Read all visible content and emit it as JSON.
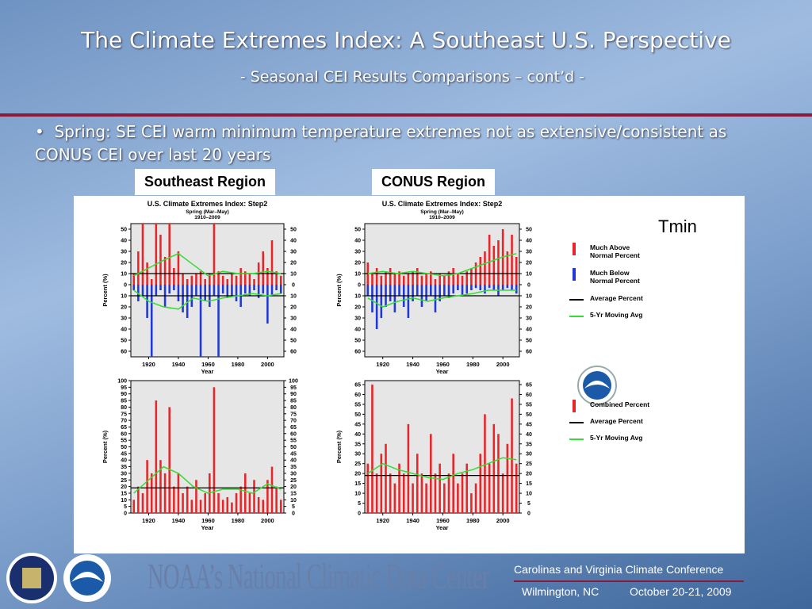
{
  "header": {
    "title": "The Climate Extremes Index:  A Southeast U.S. Perspective",
    "subtitle": "- Seasonal CEI Results Comparisons – cont’d -"
  },
  "bullet": "Spring:  SE CEI warm minimum temperature extremes not as extensive/consistent as CONUS CEI over last 20 years",
  "labels": {
    "southeast": "Southeast Region",
    "conus": "CONUS Region",
    "tmin": "Tmin"
  },
  "footer": {
    "center": "NOAA’s National Climatic Data Center",
    "conference": "Carolinas and Virginia Climate Conference",
    "place": "Wilmington, NC",
    "date": "October 20-21, 2009"
  },
  "chart_data": [
    {
      "type": "bar",
      "title": "U.S. Climate Extremes Index: Step2",
      "subtitle": "Spring (Mar–May)",
      "period": "1910–2009",
      "xlabel": "Year",
      "ylabel": "Percent (%)",
      "x": [
        1910,
        1913,
        1916,
        1919,
        1922,
        1925,
        1928,
        1931,
        1934,
        1937,
        1940,
        1943,
        1946,
        1949,
        1952,
        1955,
        1958,
        1961,
        1964,
        1967,
        1970,
        1973,
        1976,
        1979,
        1982,
        1985,
        1988,
        1991,
        1994,
        1997,
        2000,
        2003,
        2006,
        2009
      ],
      "xlim": [
        1908,
        2011
      ],
      "xticks": [
        1920,
        1940,
        1960,
        1980,
        2000
      ],
      "ylim": [
        -65,
        55
      ],
      "yticks": [
        {
          "value": -60,
          "label": "60"
        },
        {
          "value": -50,
          "label": "50"
        },
        {
          "value": -40,
          "label": "40"
        },
        {
          "value": -30,
          "label": "30"
        },
        {
          "value": -20,
          "label": "20"
        },
        {
          "value": -10,
          "label": "10"
        },
        0,
        10,
        20,
        30,
        40,
        50
      ],
      "series": [
        {
          "name": "Much Above Normal Percent",
          "color": "#e8262a",
          "values": [
            10,
            30,
            55,
            20,
            5,
            55,
            45,
            25,
            55,
            15,
            30,
            10,
            5,
            8,
            10,
            12,
            5,
            10,
            55,
            12,
            8,
            5,
            10,
            8,
            15,
            12,
            10,
            5,
            20,
            30,
            15,
            40,
            12,
            8
          ]
        },
        {
          "name": "Much Below Normal Percent",
          "color": "#2038d8",
          "values": [
            -5,
            -15,
            -10,
            -30,
            -65,
            -10,
            -5,
            -20,
            -8,
            -5,
            -15,
            -25,
            -30,
            -20,
            -10,
            -65,
            -15,
            -20,
            -10,
            -65,
            -8,
            -12,
            -10,
            -15,
            -20,
            -8,
            -10,
            -5,
            -12,
            -8,
            -35,
            -10,
            -5,
            -8
          ]
        },
        {
          "name": "5-Yr Moving Avg",
          "type": "line",
          "color": "#33dd33",
          "x": [
            1910,
            1920,
            1930,
            1940,
            1950,
            1960,
            1970,
            1980,
            1990,
            2000,
            2009
          ],
          "values": [
            8,
            15,
            22,
            28,
            18,
            8,
            12,
            10,
            10,
            12,
            10
          ],
          "below_values": [
            -5,
            -15,
            -20,
            -22,
            -12,
            -15,
            -12,
            -10,
            -8,
            -10,
            -8
          ]
        }
      ],
      "reference_lines": [
        {
          "name": "Average Percent",
          "color": "#000000",
          "values": [
            10,
            -10
          ]
        }
      ]
    },
    {
      "type": "bar",
      "title": "U.S. Climate Extremes Index: Step2",
      "subtitle": "Spring (Mar–May)",
      "period": "1910–2009",
      "xlabel": "Year",
      "ylabel": "Percent (%)",
      "legend": true,
      "x": [
        1910,
        1913,
        1916,
        1919,
        1922,
        1925,
        1928,
        1931,
        1934,
        1937,
        1940,
        1943,
        1946,
        1949,
        1952,
        1955,
        1958,
        1961,
        1964,
        1967,
        1970,
        1973,
        1976,
        1979,
        1982,
        1985,
        1988,
        1991,
        1994,
        1997,
        2000,
        2003,
        2006,
        2009
      ],
      "xlim": [
        1908,
        2011
      ],
      "xticks": [
        1920,
        1940,
        1960,
        1980,
        2000
      ],
      "ylim": [
        -65,
        55
      ],
      "yticks": [
        {
          "value": -60,
          "label": "60"
        },
        {
          "value": -50,
          "label": "50"
        },
        {
          "value": -40,
          "label": "40"
        },
        {
          "value": -30,
          "label": "30"
        },
        {
          "value": -20,
          "label": "20"
        },
        {
          "value": -10,
          "label": "10"
        },
        0,
        10,
        20,
        30,
        40,
        50
      ],
      "series": [
        {
          "name": "Much Above Normal Percent",
          "color": "#e8262a",
          "values": [
            20,
            10,
            15,
            8,
            12,
            15,
            10,
            12,
            8,
            10,
            12,
            15,
            8,
            10,
            12,
            5,
            10,
            8,
            12,
            15,
            10,
            8,
            12,
            15,
            20,
            25,
            30,
            45,
            35,
            40,
            50,
            30,
            45,
            25
          ]
        },
        {
          "name": "Much Below Normal Percent",
          "color": "#2038d8",
          "values": [
            -10,
            -25,
            -40,
            -30,
            -20,
            -15,
            -25,
            -10,
            -20,
            -30,
            -15,
            -10,
            -20,
            -15,
            -10,
            -25,
            -15,
            -10,
            -12,
            -8,
            -5,
            -10,
            -8,
            -5,
            -3,
            -5,
            -8,
            -3,
            -5,
            -10,
            -5,
            -3,
            -5,
            -8
          ]
        },
        {
          "name": "5-Yr Moving Avg",
          "type": "line",
          "color": "#33dd33",
          "x": [
            1910,
            1920,
            1930,
            1940,
            1950,
            1960,
            1970,
            1980,
            1990,
            2000,
            2009
          ],
          "values": [
            10,
            12,
            10,
            12,
            10,
            8,
            10,
            15,
            20,
            25,
            28
          ],
          "below_values": [
            -12,
            -20,
            -15,
            -12,
            -15,
            -12,
            -10,
            -8,
            -5,
            -5,
            -5
          ]
        }
      ],
      "reference_lines": [
        {
          "name": "Average Percent",
          "color": "#000000",
          "values": [
            10,
            -10
          ]
        }
      ]
    },
    {
      "type": "bar",
      "xlabel": "Year",
      "ylabel": "Percent (%)",
      "x": [
        1910,
        1913,
        1916,
        1919,
        1922,
        1925,
        1928,
        1931,
        1934,
        1937,
        1940,
        1943,
        1946,
        1949,
        1952,
        1955,
        1958,
        1961,
        1964,
        1967,
        1970,
        1973,
        1976,
        1979,
        1982,
        1985,
        1988,
        1991,
        1994,
        1997,
        2000,
        2003,
        2006,
        2009
      ],
      "xlim": [
        1908,
        2011
      ],
      "xticks": [
        1920,
        1940,
        1960,
        1980,
        2000
      ],
      "ylim": [
        0,
        100
      ],
      "yticks": [
        0,
        5,
        10,
        15,
        20,
        25,
        30,
        35,
        40,
        45,
        50,
        55,
        60,
        65,
        70,
        75,
        80,
        85,
        90,
        95,
        100
      ],
      "series": [
        {
          "name": "Combined Percent",
          "color": "#e8262a",
          "values": [
            10,
            20,
            15,
            40,
            30,
            85,
            40,
            30,
            80,
            20,
            30,
            15,
            20,
            10,
            25,
            10,
            15,
            30,
            95,
            15,
            10,
            12,
            8,
            15,
            20,
            30,
            15,
            25,
            12,
            10,
            25,
            35,
            20,
            10
          ]
        },
        {
          "name": "5-Yr Moving Avg",
          "type": "line",
          "color": "#33dd33",
          "x": [
            1910,
            1920,
            1930,
            1940,
            1950,
            1960,
            1970,
            1980,
            1990,
            2000,
            2009
          ],
          "values": [
            15,
            25,
            35,
            30,
            20,
            15,
            18,
            18,
            15,
            22,
            18
          ]
        }
      ],
      "reference_lines": [
        {
          "name": "Average Percent",
          "color": "#000000",
          "values": [
            19
          ]
        }
      ]
    },
    {
      "type": "bar",
      "xlabel": "Year",
      "ylabel": "Percent (%)",
      "legend": true,
      "x": [
        1910,
        1913,
        1916,
        1919,
        1922,
        1925,
        1928,
        1931,
        1934,
        1937,
        1940,
        1943,
        1946,
        1949,
        1952,
        1955,
        1958,
        1961,
        1964,
        1967,
        1970,
        1973,
        1976,
        1979,
        1982,
        1985,
        1988,
        1991,
        1994,
        1997,
        2000,
        2003,
        2006,
        2009
      ],
      "xlim": [
        1908,
        2011
      ],
      "xticks": [
        1920,
        1940,
        1960,
        1980,
        2000
      ],
      "ylim": [
        0,
        67
      ],
      "yticks": [
        0,
        5,
        10,
        15,
        20,
        25,
        30,
        35,
        40,
        45,
        50,
        55,
        60,
        65
      ],
      "series": [
        {
          "name": "Combined Percent",
          "color": "#e8262a",
          "values": [
            25,
            65,
            20,
            30,
            35,
            20,
            15,
            25,
            20,
            45,
            15,
            30,
            20,
            15,
            40,
            20,
            25,
            15,
            20,
            30,
            15,
            20,
            25,
            10,
            15,
            30,
            50,
            25,
            45,
            40,
            20,
            35,
            58,
            25
          ]
        },
        {
          "name": "5-Yr Moving Avg",
          "type": "line",
          "color": "#33dd33",
          "x": [
            1910,
            1920,
            1930,
            1940,
            1950,
            1960,
            1970,
            1980,
            1990,
            2000,
            2009
          ],
          "values": [
            20,
            25,
            22,
            20,
            18,
            17,
            20,
            22,
            25,
            28,
            27
          ]
        }
      ],
      "reference_lines": [
        {
          "name": "Average Percent",
          "color": "#000000",
          "values": [
            19
          ]
        }
      ]
    }
  ]
}
